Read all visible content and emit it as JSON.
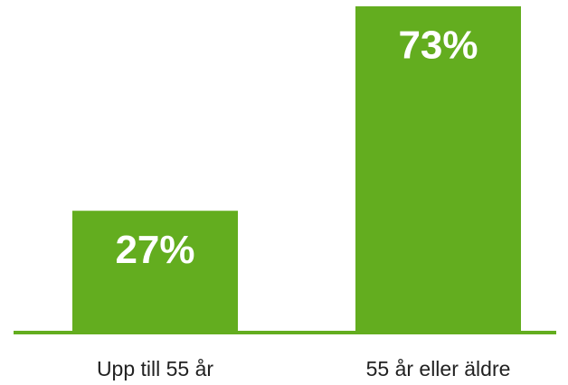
{
  "chart_data": {
    "type": "bar",
    "categories": [
      "Upp till 55 år",
      "55 år eller äldre"
    ],
    "values": [
      27,
      73
    ],
    "value_labels": [
      "27%",
      "73%"
    ],
    "color": "#63ad1f"
  }
}
